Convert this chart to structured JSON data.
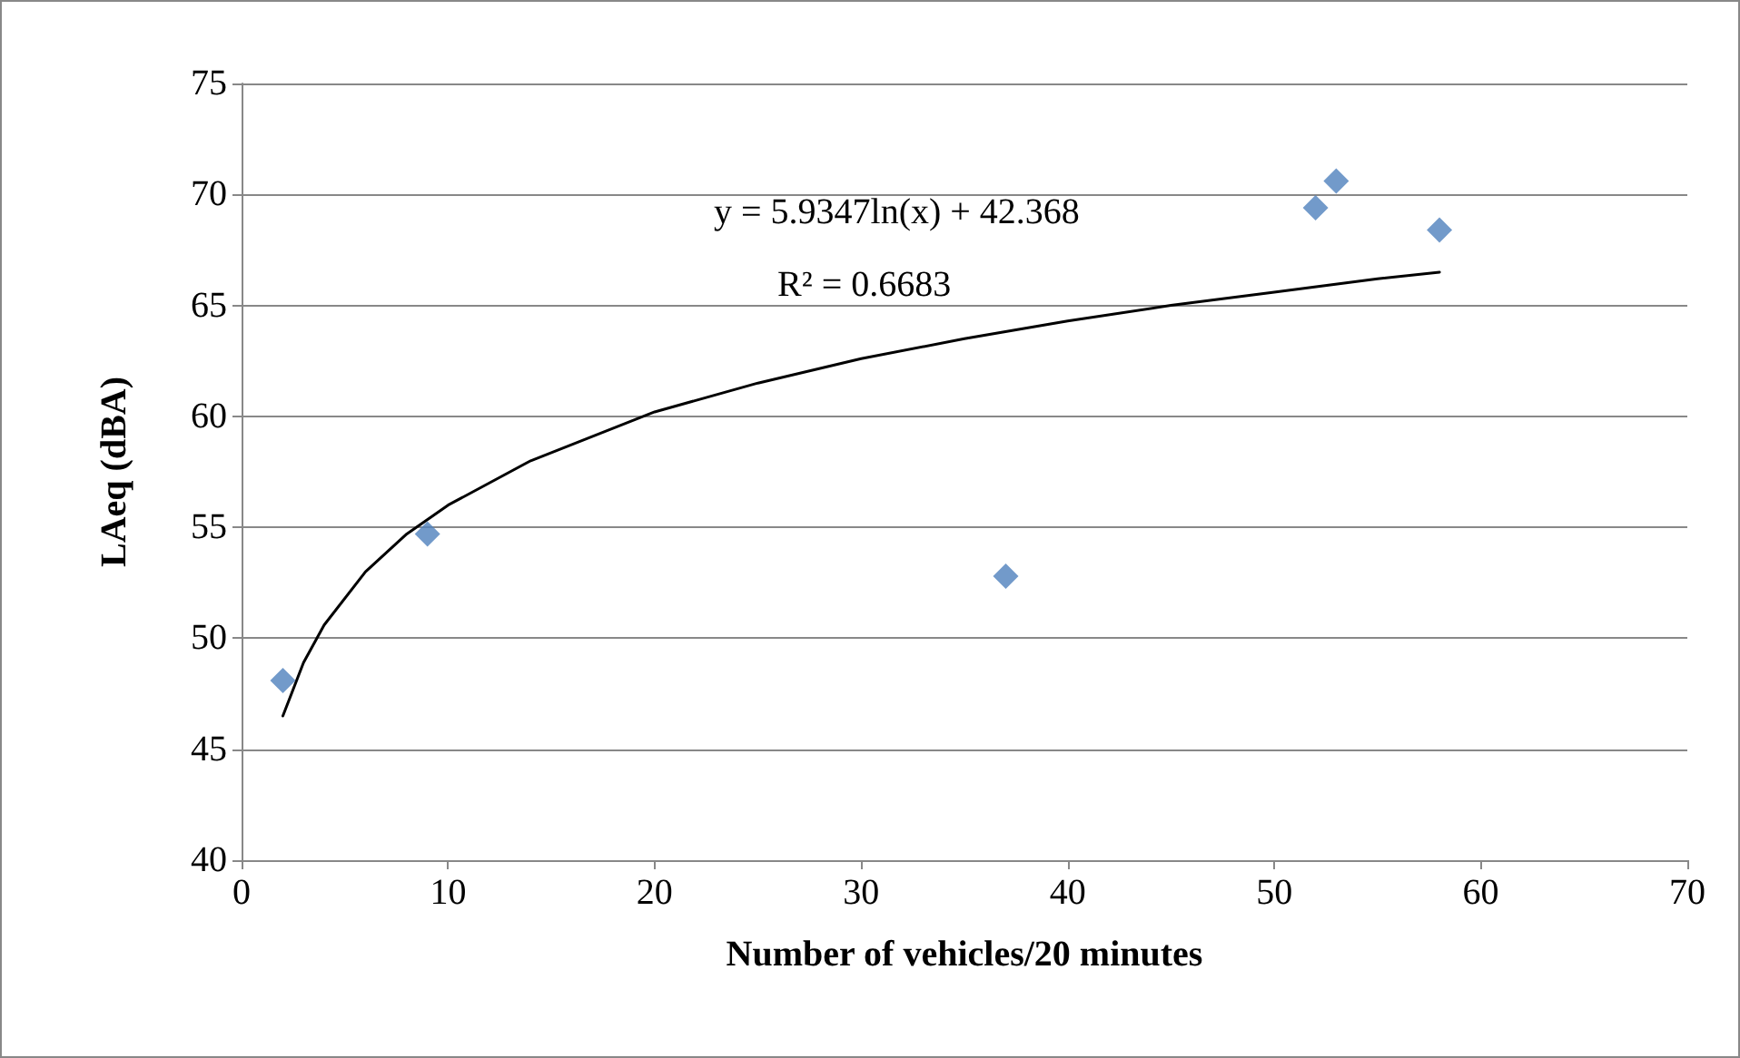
{
  "chart_data": {
    "type": "scatter",
    "xlabel": "Number of vehicles/20 minutes",
    "ylabel": "LAeq (dBA)",
    "x": [
      2,
      9,
      37,
      52,
      53,
      58
    ],
    "series": [
      {
        "color": "#4f81bd",
        "values": [
          48.1,
          54.7,
          52.8,
          69.4,
          70.6,
          68.4
        ]
      },
      {
        "type": "line",
        "color": "#000000",
        "marker": "none",
        "x": [
          2,
          3,
          4,
          6,
          8,
          10,
          14,
          20,
          25,
          30,
          35,
          40,
          45,
          50,
          55,
          58
        ],
        "values": [
          46.5,
          48.9,
          50.6,
          53.0,
          54.7,
          56.0,
          58.0,
          60.2,
          61.5,
          62.6,
          63.5,
          64.3,
          65.0,
          65.6,
          66.2,
          66.5
        ]
      }
    ],
    "xlim": [
      0,
      70
    ],
    "xticks": [
      0,
      10,
      20,
      30,
      40,
      50,
      60,
      70
    ],
    "ylim": [
      40,
      75
    ],
    "yticks": [
      40,
      45,
      50,
      55,
      60,
      65,
      70,
      75
    ],
    "grid": "y",
    "marker": "diamond",
    "annotations": [
      "y = 5.9347ln(x) + 42.368",
      "R² = 0.6683"
    ]
  }
}
